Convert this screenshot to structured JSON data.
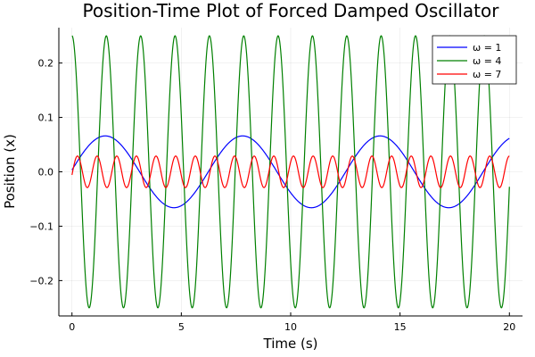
{
  "chart_data": {
    "type": "line",
    "title": "Position-Time Plot of Forced Damped Oscillator",
    "xlabel": "Time (s)",
    "ylabel": "Position (x)",
    "xlim": [
      -0.6,
      20.6
    ],
    "ylim": [
      -0.265,
      0.265
    ],
    "xticks": [
      0,
      5,
      10,
      15,
      20
    ],
    "xtick_labels": [
      "0",
      "5",
      "10",
      "15",
      "20"
    ],
    "yticks": [
      -0.2,
      -0.1,
      0.0,
      0.1,
      0.2
    ],
    "ytick_labels": [
      "−0.2",
      "−0.1",
      "0.0",
      "0.1",
      "0.2"
    ],
    "grid": true,
    "legend_position": "top-right",
    "x_range": [
      0,
      20
    ],
    "series": [
      {
        "name": "ω = 1",
        "color": "#0000ff",
        "amplitude": 0.066,
        "omega": 1,
        "phase": 0.05
      },
      {
        "name": "ω = 4",
        "color": "#008000",
        "amplitude": 0.25,
        "omega": 4,
        "phase": 1.5708
      },
      {
        "name": "ω = 7",
        "color": "#ff0000",
        "amplitude": 0.029,
        "omega": 7,
        "phase": -0.2
      }
    ]
  }
}
